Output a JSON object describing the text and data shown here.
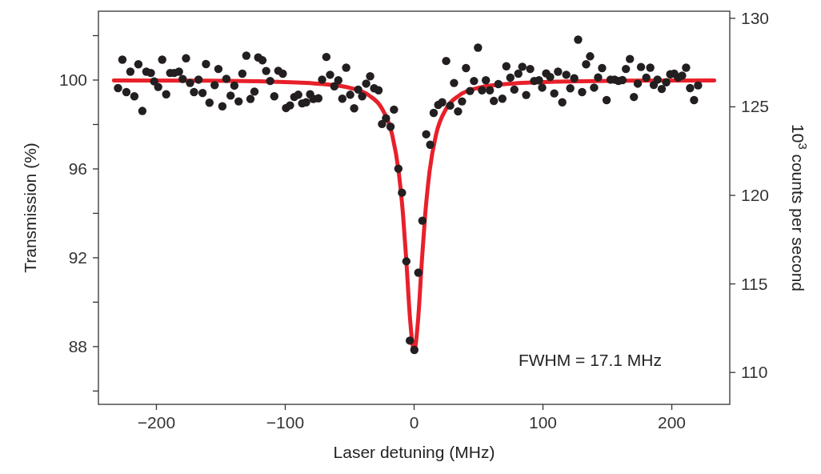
{
  "chart_data": {
    "type": "scatter",
    "xlabel": "Laser detuning (MHz)",
    "ylabel": "Transmission (%)",
    "y2label": "10$^{3}$ counts per second",
    "xlim": [
      -245,
      245
    ],
    "xticks": [
      -200,
      -100,
      0,
      100,
      200
    ],
    "ylim": [
      85.4,
      103.1
    ],
    "yticks": [
      {
        "value": 86,
        "label": null
      },
      88,
      {
        "value": 90,
        "label": null
      },
      92,
      {
        "value": 94,
        "label": null
      },
      96,
      {
        "value": 98,
        "label": null
      },
      100,
      {
        "value": 102,
        "label": null
      }
    ],
    "y2lim": [
      108.2,
      130.4
    ],
    "y2ticks": [
      110,
      115,
      120,
      125,
      130
    ],
    "grid": false,
    "marker": "circle",
    "annotations": [
      "FWHM = 17.1 MHz"
    ],
    "series": [
      {
        "color": "#231f20",
        "x": [
          -229.8,
          -226.4,
          -223.3,
          -220.2,
          -217.1,
          -214.0,
          -210.9,
          -207.8,
          -204.3,
          -201.7,
          -198.6,
          -195.5,
          -192.4,
          -189.3,
          -186.2,
          -182.5,
          -179.6,
          -177.0,
          -173.9,
          -170.8,
          -167.3,
          -164.2,
          -161.5,
          -158.8,
          -154.8,
          -151.9,
          -148.8,
          -145.7,
          -142.4,
          -139.5,
          -136.2,
          -133.3,
          -130.2,
          -127.0,
          -123.9,
          -121.0,
          -117.7,
          -114.8,
          -111.7,
          -108.5,
          -105.4,
          -101.9,
          -99.4,
          -96.3,
          -93.0,
          -89.9,
          -86.9,
          -83.8,
          -80.7,
          -78.2,
          -74.3,
          -71.4,
          -68.1,
          -65.2,
          -61.9,
          -58.8,
          -55.7,
          -52.7,
          -49.6,
          -46.5,
          -43.4,
          -40.3,
          -37.2,
          -34.1,
          -31.0,
          -27.6,
          -24.9,
          -21.8,
          -18.3,
          -15.6,
          -12.2,
          -9.4,
          -6.0,
          -3.3,
          0.2,
          3.3,
          6.4,
          9.4,
          12.5,
          15.2,
          18.7,
          21.8,
          24.9,
          28.0,
          31.0,
          34.1,
          37.2,
          40.3,
          43.4,
          46.5,
          49.6,
          52.7,
          55.7,
          58.8,
          61.9,
          65.4,
          68.5,
          71.6,
          74.7,
          77.8,
          80.9,
          84.0,
          87.0,
          90.1,
          93.2,
          96.9,
          99.4,
          102.5,
          105.6,
          108.8,
          111.7,
          115.0,
          118.1,
          121.2,
          124.3,
          127.3,
          130.4,
          133.5,
          136.6,
          139.7,
          142.8,
          145.9,
          149.4,
          152.5,
          155.6,
          158.6,
          161.7,
          164.4,
          167.5,
          170.6,
          173.6,
          176.1,
          180.2,
          183.3,
          186.0,
          188.9,
          192.2,
          195.7,
          198.8,
          201.9,
          204.9,
          208.0,
          211.1,
          214.2,
          217.3,
          220.4
        ],
        "values": [
          99.64,
          100.92,
          99.46,
          100.38,
          99.27,
          100.71,
          98.61,
          100.38,
          100.32,
          99.94,
          99.69,
          100.92,
          99.36,
          100.32,
          100.32,
          100.38,
          100.05,
          100.98,
          99.87,
          99.46,
          100.02,
          99.42,
          100.72,
          98.98,
          99.77,
          100.5,
          98.82,
          100.06,
          99.3,
          99.75,
          99.04,
          100.29,
          101.1,
          99.15,
          99.48,
          101.02,
          100.89,
          100.41,
          99.96,
          99.27,
          100.42,
          100.29,
          98.74,
          98.86,
          99.24,
          99.34,
          98.95,
          99.0,
          99.36,
          99.15,
          99.18,
          100.02,
          101.04,
          100.24,
          99.72,
          99.99,
          99.16,
          100.56,
          99.34,
          98.73,
          99.57,
          99.27,
          99.84,
          100.17,
          99.63,
          99.54,
          98.02,
          98.28,
          97.9,
          98.67,
          96.01,
          94.93,
          91.84,
          88.27,
          87.85,
          91.33,
          93.67,
          97.56,
          97.09,
          98.52,
          98.88,
          99.0,
          100.86,
          98.85,
          99.87,
          98.59,
          99.04,
          100.54,
          99.51,
          99.96,
          101.46,
          99.54,
          99.99,
          99.54,
          99.06,
          99.82,
          99.16,
          100.62,
          100.11,
          99.57,
          100.29,
          100.6,
          99.33,
          100.5,
          99.96,
          99.99,
          99.66,
          100.3,
          100.14,
          99.4,
          100.38,
          99.0,
          100.24,
          99.63,
          100.08,
          101.82,
          99.46,
          100.71,
          101.07,
          99.66,
          100.12,
          100.54,
          99.1,
          100.02,
          100.02,
          99.96,
          100.0,
          100.5,
          100.95,
          99.24,
          99.84,
          100.59,
          100.11,
          100.56,
          99.78,
          100.02,
          99.6,
          99.9,
          100.26,
          100.29,
          100.11,
          100.2,
          100.56,
          99.64,
          99.1,
          99.76
        ]
      },
      {
        "type": "line",
        "color": "#e8202a",
        "marker": "none",
        "x": [
          -233,
          -160,
          -110,
          -75,
          -50,
          -35,
          -25,
          -17.1,
          -12,
          -8.55,
          -6,
          -3,
          0,
          3,
          6,
          8.55,
          12,
          17.1,
          25,
          35,
          50,
          75,
          110,
          160,
          233
        ],
        "values": [
          99.98,
          99.97,
          99.93,
          99.84,
          99.65,
          99.31,
          98.72,
          97.56,
          95.89,
          93.9,
          91.83,
          89.14,
          87.8,
          89.14,
          91.83,
          93.9,
          95.89,
          97.56,
          98.72,
          99.31,
          99.65,
          99.84,
          99.93,
          99.97,
          99.98
        ]
      }
    ]
  }
}
